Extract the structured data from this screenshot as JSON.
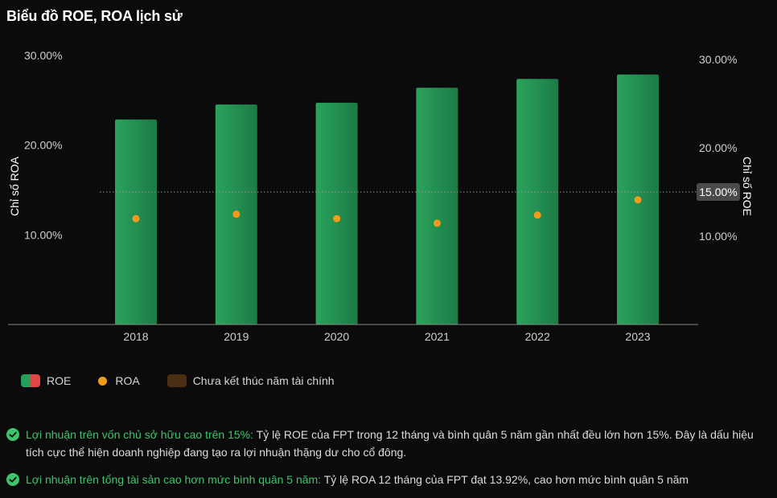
{
  "title": "Biểu đồ ROE, ROA lịch sử",
  "colors": {
    "background": "#0b0b0b",
    "bar_green": "#23914f",
    "bar_red": "#e04848",
    "roa_dot": "#f59a1c",
    "pending": "#4a2f14",
    "highlight": "#3fc46e"
  },
  "chart_data": {
    "type": "bar",
    "categories": [
      "2018",
      "2019",
      "2020",
      "2021",
      "2022",
      "2023"
    ],
    "series": [
      {
        "name": "ROE",
        "type": "bar",
        "axis": "right",
        "values": [
          23.2,
          24.9,
          25.1,
          26.8,
          27.8,
          28.3
        ]
      },
      {
        "name": "ROA",
        "type": "scatter",
        "axis": "left",
        "values": [
          11.8,
          12.3,
          11.8,
          11.3,
          12.2,
          13.9
        ]
      }
    ],
    "y_left": {
      "label": "Chỉ số ROA",
      "ticks": [
        "10.00%",
        "20.00%",
        "30.00%"
      ],
      "range": [
        0,
        30
      ]
    },
    "y_right": {
      "label": "Chỉ số ROE",
      "ticks": [
        "10.00%",
        "20.00%",
        "30.00%"
      ],
      "range": [
        0,
        30
      ]
    },
    "reference_line": {
      "value": 15,
      "axis": "right",
      "label": "15.00%"
    },
    "grid": false,
    "legend_position": "bottom-left"
  },
  "legend": {
    "roe": "ROE",
    "roa": "ROA",
    "pending": "Chưa kết thúc năm tài chính"
  },
  "notes": [
    {
      "highlight": "Lợi nhuận trên vốn chủ sở hữu cao trên 15%:",
      "text": " Tỷ lệ ROE của FPT trong 12 tháng và bình quân 5 năm gần nhất đều lớn hơn 15%. Đây là dấu hiệu tích cực thể hiện doanh nghiệp đang tạo ra lợi nhuận thặng dư cho cổ đông."
    },
    {
      "highlight": "Lợi nhuận trên tổng tài sản cao hơn mức bình quân 5 năm:",
      "text": " Tỷ lệ ROA 12 tháng của FPT đạt 13.92%, cao hơn mức bình quân 5 năm"
    }
  ]
}
